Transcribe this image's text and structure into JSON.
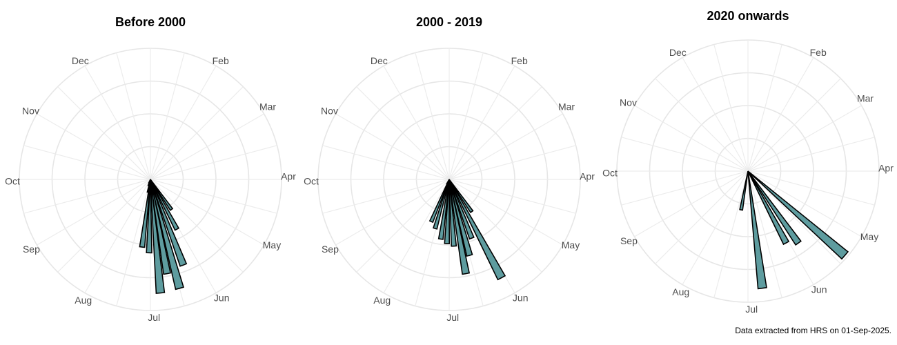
{
  "caption": "Data extracted from HRS on 01-Sep-2025.",
  "colors": {
    "bar_fill": "#5e9c9f",
    "bar_stroke": "#000000",
    "grid": "#e6e6e6",
    "label": "#4d4d4d"
  },
  "chart_data": [
    {
      "type": "polar-bar",
      "title": "Before 2000",
      "categories": [
        "Jan",
        "Feb",
        "Mar",
        "Apr",
        "May",
        "Jun",
        "Jul",
        "Aug",
        "Sep",
        "Oct",
        "Nov",
        "Dec"
      ],
      "angular_axis": {
        "start": "top",
        "direction": "clockwise",
        "unit": "day of year"
      },
      "radial_axis": {
        "range": [
          0,
          1
        ],
        "grid_rings": 4,
        "tick_labels": "none"
      },
      "bars": [
        {
          "angle": 145,
          "value": 0.28
        },
        {
          "angle": 152,
          "value": 0.43
        },
        {
          "angle": 159,
          "value": 0.7
        },
        {
          "angle": 165,
          "value": 0.86
        },
        {
          "angle": 170,
          "value": 0.73
        },
        {
          "angle": 175,
          "value": 0.87
        },
        {
          "angle": 181,
          "value": 0.56
        },
        {
          "angle": 187,
          "value": 0.52
        },
        {
          "angle": 192,
          "value": 0.1
        },
        {
          "angle": 199,
          "value": 0.05
        },
        {
          "angle": 204,
          "value": 0.03
        }
      ]
    },
    {
      "type": "polar-bar",
      "title": "2000 - 2019",
      "categories": [
        "Jan",
        "Feb",
        "Mar",
        "Apr",
        "May",
        "Jun",
        "Jul",
        "Aug",
        "Sep",
        "Oct",
        "Nov",
        "Dec"
      ],
      "angular_axis": {
        "start": "top",
        "direction": "clockwise",
        "unit": "day of year"
      },
      "radial_axis": {
        "range": [
          0,
          1
        ],
        "grid_rings": 4,
        "tick_labels": "none"
      },
      "bars": [
        {
          "angle": 145,
          "value": 0.3
        },
        {
          "angle": 152,
          "value": 0.85
        },
        {
          "angle": 159,
          "value": 0.48
        },
        {
          "angle": 165,
          "value": 0.6
        },
        {
          "angle": 170,
          "value": 0.73
        },
        {
          "angle": 176,
          "value": 0.51
        },
        {
          "angle": 182,
          "value": 0.49
        },
        {
          "angle": 188,
          "value": 0.46
        },
        {
          "angle": 196,
          "value": 0.39
        },
        {
          "angle": 203,
          "value": 0.35
        },
        {
          "angle": 208,
          "value": 0.04
        }
      ]
    },
    {
      "type": "polar-bar",
      "title": "2020 onwards",
      "categories": [
        "Jan",
        "Feb",
        "Mar",
        "Apr",
        "May",
        "Jun",
        "Jul",
        "Aug",
        "Sep",
        "Oct",
        "Nov",
        "Dec"
      ],
      "angular_axis": {
        "start": "top",
        "direction": "clockwise",
        "unit": "day of year"
      },
      "radial_axis": {
        "range": [
          0,
          1
        ],
        "grid_rings": 4,
        "tick_labels": "none"
      },
      "bars": [
        {
          "angle": 131,
          "value": 0.98
        },
        {
          "angle": 145,
          "value": 0.67
        },
        {
          "angle": 152,
          "value": 0.62
        },
        {
          "angle": 173,
          "value": 0.9
        },
        {
          "angle": 190,
          "value": 0.3
        }
      ]
    }
  ]
}
